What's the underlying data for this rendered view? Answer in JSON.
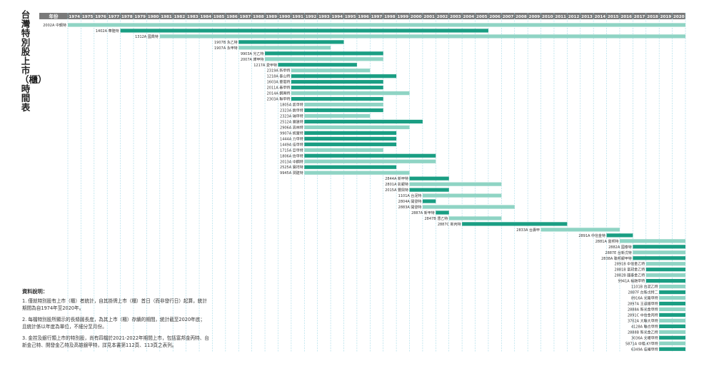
{
  "title": "台灣特別股上市（櫃）時間表",
  "colors": {
    "listed": "#1a9e83",
    "otc": "#8fd4c4",
    "header": "#7a7a7a",
    "gridline": "#9fd8e6"
  },
  "chart_data": {
    "type": "bar",
    "header_label": "年份",
    "years": [
      "1974",
      "1975",
      "1976",
      "1977",
      "1978",
      "1979",
      "1980",
      "1981",
      "1982",
      "1983",
      "1984",
      "1985",
      "1986",
      "1987",
      "1988",
      "1989",
      "1990",
      "1991",
      "1992",
      "1993",
      "1994",
      "1995",
      "1996",
      "1997",
      "1998",
      "1999",
      "2000",
      "2001",
      "2002",
      "2003",
      "2004",
      "2005",
      "2006",
      "2007",
      "2008",
      "2009",
      "2010",
      "2011",
      "2012",
      "2013",
      "2014",
      "2015",
      "2016",
      "2017",
      "2018",
      "2019",
      "2020"
    ],
    "xlim": [
      1974,
      2021
    ],
    "rows": [
      {
        "label": "2002A 中鋼特",
        "start": 1974,
        "end": 2021,
        "type": "otc",
        "align": "left"
      },
      {
        "label": "1402A 華隆特",
        "start": 1978,
        "end": 2006,
        "type": "listed",
        "align": "left"
      },
      {
        "label": "1312A 國喬特",
        "start": 1981,
        "end": 2021,
        "type": "otc",
        "align": "left"
      },
      {
        "label": "1907B 永乙特",
        "start": 1987,
        "end": 1995,
        "type": "listed"
      },
      {
        "label": "1907A 永甲特",
        "start": 1987,
        "end": 1994,
        "type": "otc"
      },
      {
        "label": "9903A 光乙特",
        "start": 1989,
        "end": 1998,
        "type": "listed"
      },
      {
        "label": "2007A 燁甲特",
        "start": 1989,
        "end": 1998,
        "type": "otc"
      },
      {
        "label": "1217A 愛甲特",
        "start": 1990,
        "end": 1996,
        "type": "listed"
      },
      {
        "label": "2319A 新甲特",
        "start": 1991,
        "end": 1997,
        "type": "otc"
      },
      {
        "label": "1218A 泰山特",
        "start": 1991,
        "end": 1999,
        "type": "listed"
      },
      {
        "label": "1603A 華電特",
        "start": 1991,
        "end": 1998,
        "type": "listed"
      },
      {
        "label": "2011A 春甲特",
        "start": 1991,
        "end": 1998,
        "type": "listed"
      },
      {
        "label": "2014A 鋼興特",
        "start": 1991,
        "end": 2000,
        "type": "otc"
      },
      {
        "label": "2303A 聯甲特",
        "start": 1991,
        "end": 1998,
        "type": "listed"
      },
      {
        "label": "1805A 凱甲特",
        "start": 1992,
        "end": 1998,
        "type": "otc"
      },
      {
        "label": "2323A 銳甲特",
        "start": 1992,
        "end": 1998,
        "type": "listed"
      },
      {
        "label": "2323A 瑞甲特",
        "start": 1992,
        "end": 1997,
        "type": "otc"
      },
      {
        "label": "2512A 寶建特",
        "start": 1992,
        "end": 2001,
        "type": "listed"
      },
      {
        "label": "2906A 高林特",
        "start": 1992,
        "end": 2000,
        "type": "otc"
      },
      {
        "label": "9907A 統實特",
        "start": 1992,
        "end": 1999,
        "type": "listed"
      },
      {
        "label": "1444A 力甲特",
        "start": 1992,
        "end": 1999,
        "type": "listed"
      },
      {
        "label": "1449A 佳甲特",
        "start": 1992,
        "end": 1999,
        "type": "listed"
      },
      {
        "label": "1715A 亞甲特",
        "start": 1992,
        "end": 1998,
        "type": "otc"
      },
      {
        "label": "1806A 信甲特",
        "start": 1992,
        "end": 2002,
        "type": "listed"
      },
      {
        "label": "2013A 中鋼特",
        "start": 1992,
        "end": 2002,
        "type": "otc"
      },
      {
        "label": "2525A 寶祥特",
        "start": 1992,
        "end": 1999,
        "type": "listed"
      },
      {
        "label": "9945A 潤建特",
        "start": 1992,
        "end": 2000,
        "type": "otc"
      },
      {
        "label": "2844A 新甲特",
        "start": 2000,
        "end": 2003,
        "type": "listed"
      },
      {
        "label": "2801A 彰銀特",
        "start": 2000,
        "end": 2007,
        "type": "otc"
      },
      {
        "label": "2015A 豐興特",
        "start": 2000,
        "end": 2003,
        "type": "listed"
      },
      {
        "label": "1101A 台泥特",
        "start": 2001,
        "end": 2007,
        "type": "otc"
      },
      {
        "label": "2804A 開發特",
        "start": 2001,
        "end": 2002,
        "type": "listed"
      },
      {
        "label": "2883A 開發特",
        "start": 2001,
        "end": 2008,
        "type": "otc"
      },
      {
        "label": "2887A 新甲特",
        "start": 2002,
        "end": 2003,
        "type": "listed"
      },
      {
        "label": "2847B 灃乙特",
        "start": 2003,
        "end": 2007,
        "type": "otc"
      },
      {
        "label": "2887C 新丙特",
        "start": 2004,
        "end": 2012,
        "type": "listed"
      },
      {
        "label": "2833A 台壽甲",
        "start": 2010,
        "end": 2016,
        "type": "otc"
      },
      {
        "label": "2891A 中信金特",
        "start": 2015,
        "end": 2017,
        "type": "listed"
      },
      {
        "label": "2881A 富邦特",
        "start": 2016,
        "end": 2021,
        "type": "otc"
      },
      {
        "label": "2882A 國泰特",
        "start": 2017,
        "end": 2021,
        "type": "listed"
      },
      {
        "label": "2887E 台新戊特",
        "start": 2017,
        "end": 2021,
        "type": "otc"
      },
      {
        "label": "2838A 聯邦銀甲特",
        "start": 2017,
        "end": 2021,
        "type": "listed"
      },
      {
        "label": "2891B 中信金乙特",
        "start": 2018,
        "end": 2021,
        "type": "otc"
      },
      {
        "label": "2881B 富邦金乙特",
        "start": 2018,
        "end": 2021,
        "type": "listed"
      },
      {
        "label": "2882B 國泰金乙特",
        "start": 2018,
        "end": 2021,
        "type": "otc"
      },
      {
        "label": "9941A 裕融甲特",
        "start": 2018,
        "end": 2021,
        "type": "listed"
      },
      {
        "label": "1101B 台泥乙特",
        "start": 2019,
        "end": 2021,
        "type": "otc"
      },
      {
        "label": "2887F 台新戊特二",
        "start": 2019,
        "end": 2021,
        "type": "listed"
      },
      {
        "label": "8916A 光隆甲特",
        "start": 2019,
        "end": 2021,
        "type": "otc"
      },
      {
        "label": "2897A 王道銀甲特",
        "start": 2019,
        "end": 2021,
        "type": "listed"
      },
      {
        "label": "2888A 新光金甲特",
        "start": 2019,
        "end": 2021,
        "type": "otc"
      },
      {
        "label": "2891C 中信金丙特",
        "start": 2019,
        "end": 2021,
        "type": "listed"
      },
      {
        "label": "3702A 大聯大甲特",
        "start": 2019,
        "end": 2021,
        "type": "otc"
      },
      {
        "label": "4128A 聯合甲特",
        "start": 2019,
        "end": 2021,
        "type": "listed"
      },
      {
        "label": "2888B 新光金乙特",
        "start": 2019,
        "end": 2021,
        "type": "otc"
      },
      {
        "label": "3036A 文曄甲特",
        "start": 2019,
        "end": 2021,
        "type": "listed"
      },
      {
        "label": "5871A 中租-KY甲特",
        "start": 2019,
        "end": 2021,
        "type": "otc"
      },
      {
        "label": "6349A 佳耀甲特",
        "start": 2019,
        "end": 2021,
        "type": "listed"
      }
    ]
  },
  "notes": {
    "title": "資料說明：",
    "items": [
      "1. 僅就特別股有上市（櫃）者統計，自其掛牌上市（櫃）首日（而非發行日）起算，統計期間為自1974年至2020年。",
      "2. 每檔特別股所顯示的長條圖長度，為其上市（櫃）存續的期間，統計截至2020年底；且統計係以年度為單位，不細分至月份。",
      "3. 金控及銀行類上市的特別股，尚有四檔於2021-2022年期間上市，包括富邦金丙特、台新金己特、開發金乙特及高雄銀甲特，詳見本書第112頁、113頁之表列。"
    ]
  }
}
